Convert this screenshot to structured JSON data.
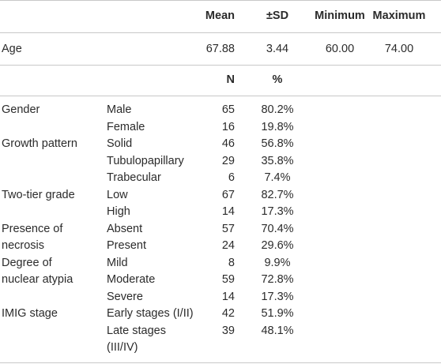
{
  "table": {
    "header": [
      "Mean",
      "±SD",
      "Minimum",
      "Maximum"
    ],
    "age_row": [
      "Age",
      "67.88",
      "3.44",
      "60.00",
      "74.00"
    ],
    "subheader": [
      "N",
      "%"
    ],
    "rows": [
      [
        "Gender",
        "Male",
        "65",
        "80.2%"
      ],
      [
        null,
        "Female",
        "16",
        "19.8%"
      ],
      [
        "Growth pattern",
        "Solid",
        "46",
        "56.8%"
      ],
      [
        null,
        "Tubulopapillary",
        "29",
        "35.8%"
      ],
      [
        null,
        "Trabecular",
        "6",
        "7.4%"
      ],
      [
        "Two-tier grade",
        "Low",
        "67",
        "82.7%"
      ],
      [
        null,
        "High",
        "14",
        "17.3%"
      ],
      [
        "Presence of",
        "Absent",
        "57",
        "70.4%"
      ],
      [
        "necrosis",
        "Present",
        "24",
        "29.6%"
      ],
      [
        "Degree of",
        "Mild",
        "8",
        "9.9%"
      ],
      [
        "nuclear atypia",
        "Moderate",
        "59",
        "72.8%"
      ],
      [
        null,
        "Severe",
        "14",
        "17.3%"
      ],
      [
        "IMIG stage",
        "Early stages (I/II)",
        "42",
        "51.9%"
      ],
      [
        null,
        "Late stages",
        "39",
        "48.1%"
      ],
      [
        null,
        "(III/IV)",
        null,
        null
      ]
    ]
  }
}
